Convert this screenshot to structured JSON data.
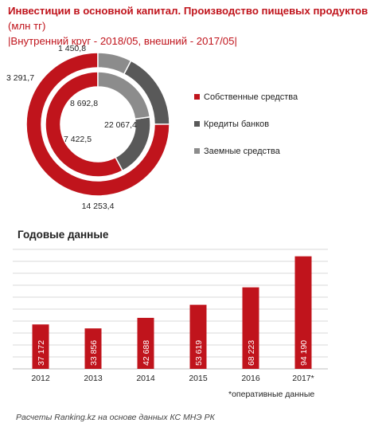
{
  "title": {
    "main": "Инвестиции в основной капитал. Производство пищевых  продуктов",
    "unit": " (млн тг)",
    "subtitle": "|Внутренний круг - 2018/05, внешний - 2017/05|"
  },
  "colors": {
    "red": "#c0141c",
    "dark_gray": "#595959",
    "light_gray": "#8c8c8c",
    "grid": "#d9d9d9"
  },
  "legend": [
    {
      "label": "Собственные средства",
      "color": "#c0141c"
    },
    {
      "label": "Кредиты банков",
      "color": "#595959"
    },
    {
      "label": "Заемные средства",
      "color": "#8c8c8c"
    }
  ],
  "bar_section_title": "Годовые данные",
  "footnote": "*оперативные данные",
  "source": "Расчеты Ranking.kz на основе данных КС МНЭ РК",
  "chart_data": [
    {
      "type": "pie",
      "title": "Инвестиции в основной капитал. Производство пищевых  продуктов",
      "subtype": "doughnut",
      "series": [
        {
          "name": "2017/05",
          "ring": "outer",
          "labels": [
            "Собственные средства",
            "Кредиты банков",
            "Заемные средства"
          ],
          "values": [
            14253.4,
            3291.7,
            1450.8
          ],
          "value_labels": [
            "14 253,4",
            "3 291,7",
            "1 450,8"
          ]
        },
        {
          "name": "2018/05",
          "ring": "inner",
          "labels": [
            "Собственные средства",
            "Кредиты банков",
            "Заемные средства"
          ],
          "values": [
            22067.4,
            7422.5,
            8692.8
          ],
          "value_labels": [
            "22 067,4",
            "7 422,5",
            "8 692,8"
          ]
        }
      ],
      "legend_position": "right"
    },
    {
      "type": "bar",
      "title": "Годовые данные",
      "categories": [
        "2012",
        "2013",
        "2014",
        "2015",
        "2016",
        "2017*"
      ],
      "values": [
        37172,
        33856,
        42688,
        53619,
        68223,
        94190
      ],
      "value_labels": [
        "37 172",
        "33 856",
        "42 688",
        "53 619",
        "68 223",
        "94 190"
      ],
      "ylim": [
        0,
        100000
      ],
      "grid": true,
      "color": "#c0141c"
    }
  ]
}
